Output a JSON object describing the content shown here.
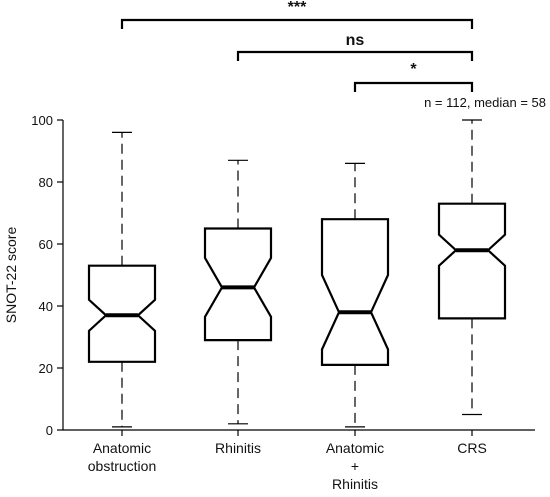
{
  "chart_data": {
    "type": "box",
    "ylabel": "SNOT-22 score",
    "ylim": [
      0,
      100
    ],
    "yticks": [
      "0",
      "20",
      "40",
      "60",
      "80",
      "100"
    ],
    "ytick_values": [
      0,
      20,
      40,
      60,
      80,
      100
    ],
    "categories": [
      [
        "Anatomic",
        "obstruction"
      ],
      [
        "Rhinitis"
      ],
      [
        "Anatomic",
        "+",
        "Rhinitis"
      ],
      [
        "CRS"
      ]
    ],
    "boxes": [
      {
        "min": 1,
        "q1": 22,
        "notch_low": 32,
        "median": 37,
        "notch_high": 42,
        "q3": 53,
        "max": 96
      },
      {
        "min": 2,
        "q1": 29,
        "notch_low": 36.5,
        "median": 46,
        "notch_high": 55.5,
        "q3": 65,
        "max": 87
      },
      {
        "min": 1,
        "q1": 21,
        "notch_low": 26,
        "median": 38,
        "notch_high": 50,
        "q3": 68,
        "max": 86
      },
      {
        "min": 5,
        "q1": 36,
        "notch_low": 53,
        "median": 58,
        "notch_high": 63,
        "q3": 73,
        "max": 100
      }
    ],
    "annotation": "n = 112, median = 58",
    "significance": [
      {
        "from": 0,
        "to": 3,
        "label": "***"
      },
      {
        "from": 1,
        "to": 3,
        "label": "ns"
      },
      {
        "from": 2,
        "to": 3,
        "label": "*"
      }
    ]
  }
}
